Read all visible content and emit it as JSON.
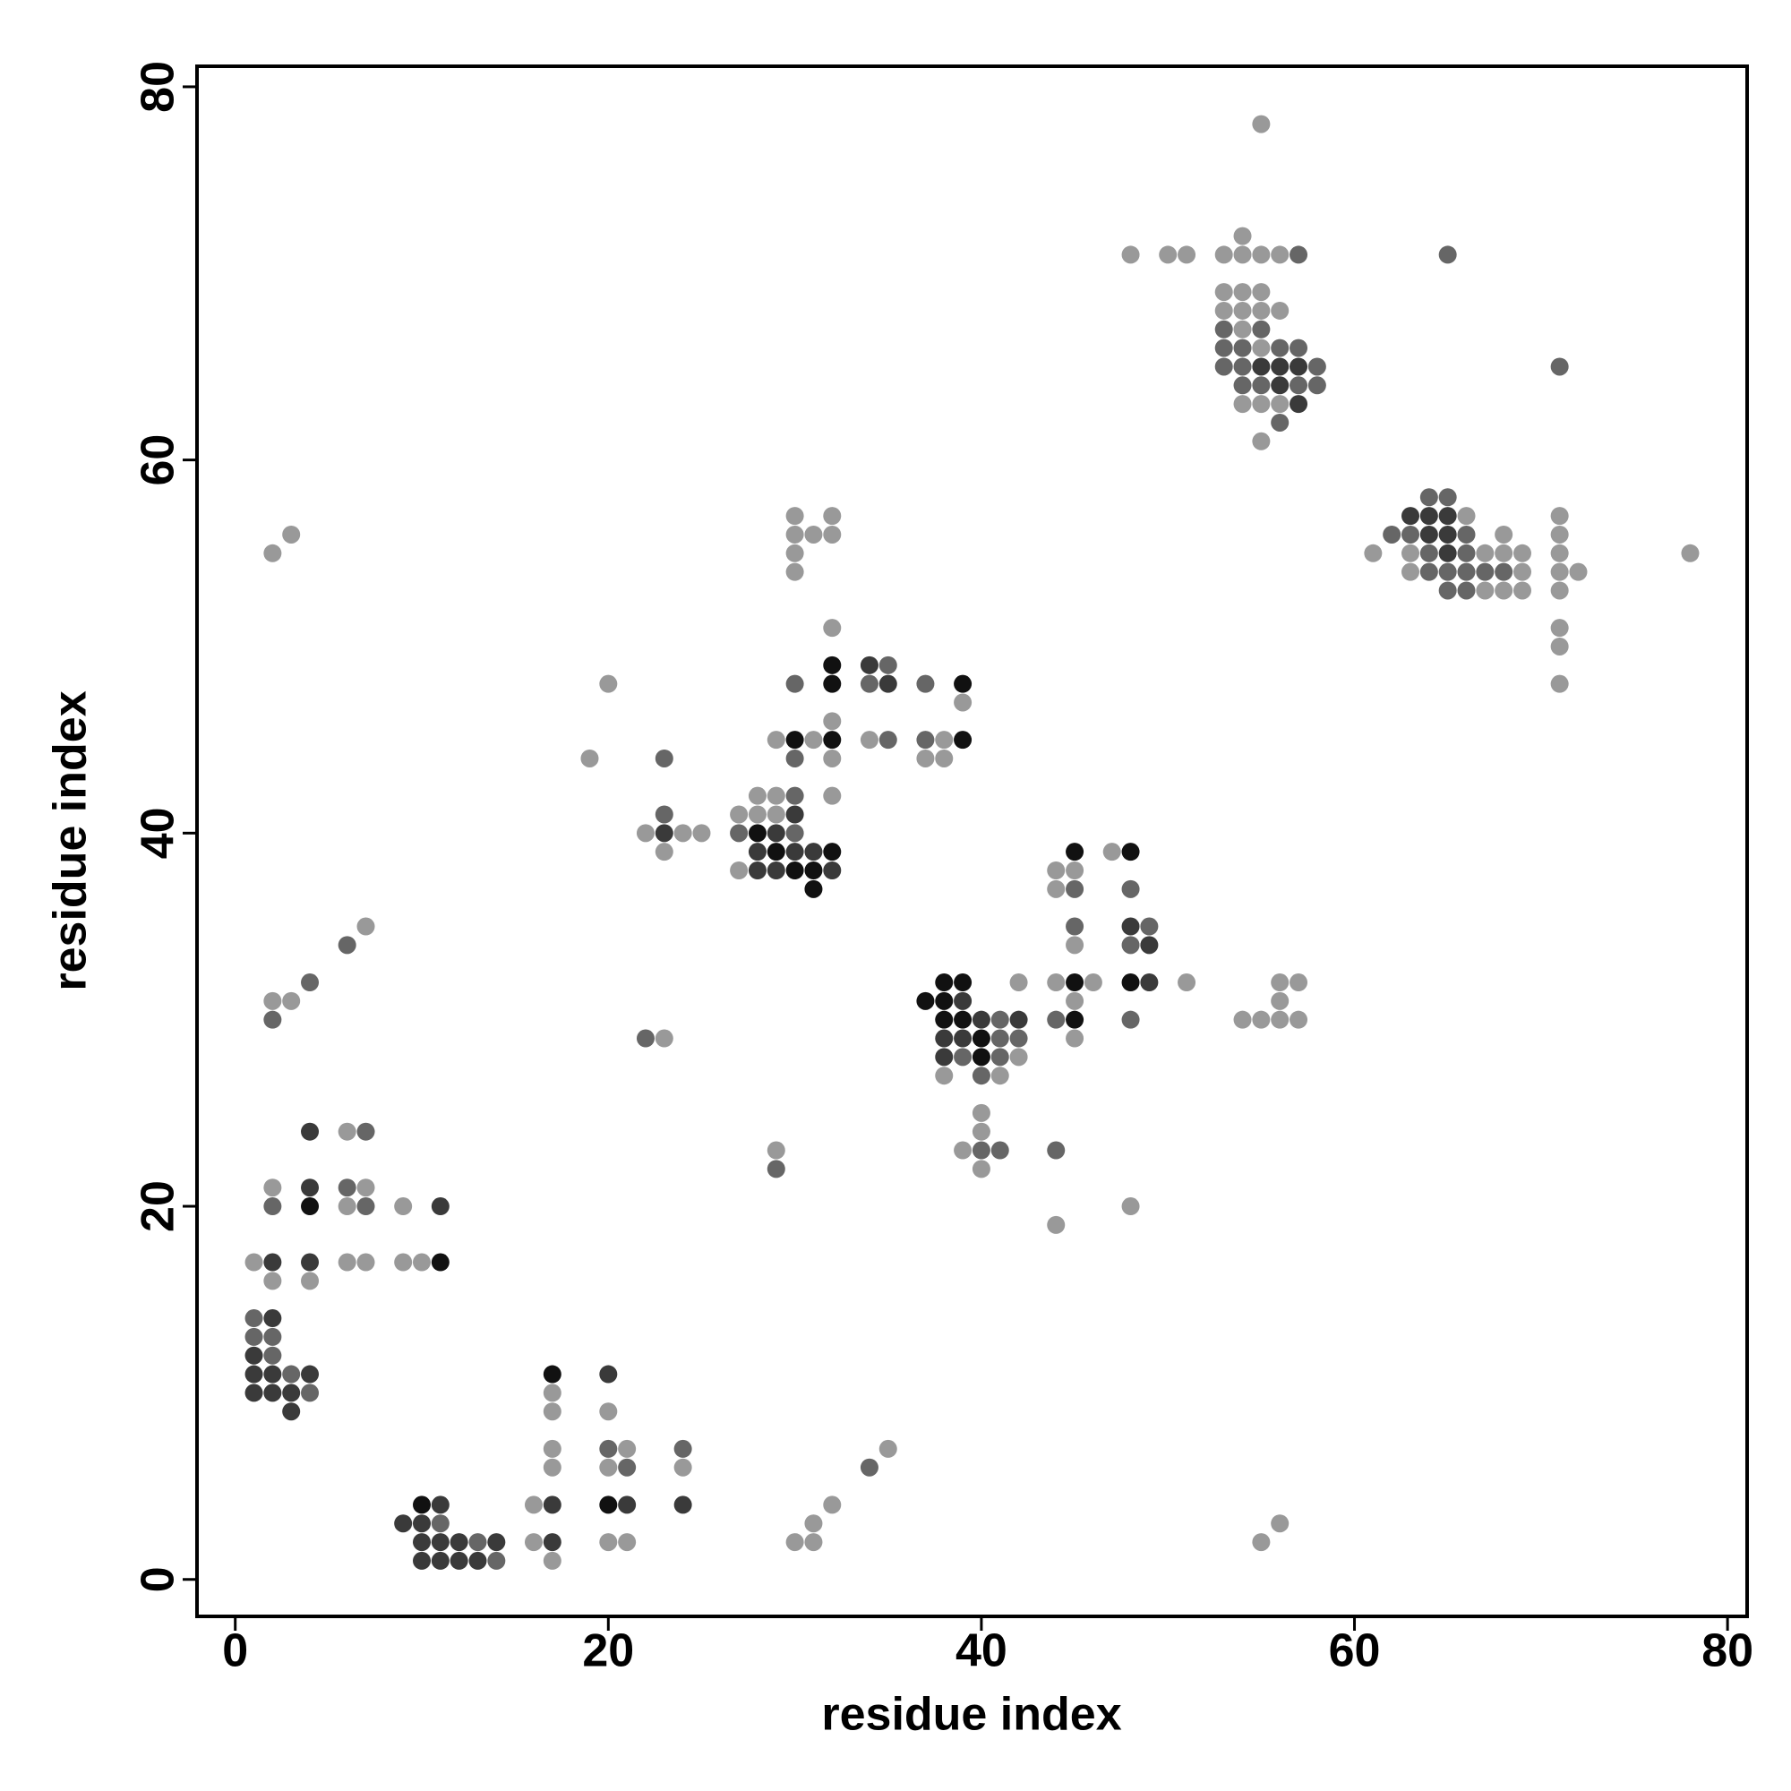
{
  "chart_data": {
    "type": "scatter",
    "xlabel": "residue index",
    "ylabel": "residue index",
    "xlim": [
      -2.05,
      81.05
    ],
    "ylim": [
      -1.98,
      81.1
    ],
    "xticks": [
      0,
      20,
      40,
      60,
      80
    ],
    "yticks": [
      0,
      20,
      40,
      60,
      80
    ],
    "series": [
      {
        "color": "#111111",
        "x": [
          10,
          17,
          20,
          4,
          11,
          28,
          29,
          30,
          30,
          31,
          31,
          32,
          32,
          32,
          32,
          39,
          39,
          37,
          38,
          38,
          38,
          39,
          39,
          40,
          40,
          45,
          45,
          45,
          48,
          48
        ],
        "y": [
          4,
          11,
          4,
          20,
          17,
          40,
          39,
          38,
          45,
          38,
          37,
          49,
          48,
          45,
          39,
          48,
          45,
          31,
          32,
          31,
          30,
          32,
          30,
          29,
          28,
          39,
          32,
          30,
          39,
          32
        ]
      },
      {
        "color": "#3a3a3a",
        "x": [
          9,
          10,
          10,
          10,
          11,
          11,
          11,
          12,
          12,
          13,
          14,
          17,
          17,
          20,
          21,
          24,
          1,
          1,
          1,
          2,
          2,
          2,
          3,
          3,
          4,
          2,
          4,
          4,
          4,
          11,
          23,
          28,
          28,
          29,
          29,
          30,
          30,
          31,
          32,
          34,
          35,
          38,
          38,
          39,
          39,
          40,
          42,
          48,
          49,
          49,
          55,
          56,
          56,
          57,
          57,
          63,
          64,
          64,
          65,
          65,
          65
        ],
        "y": [
          3,
          3,
          2,
          1,
          4,
          2,
          1,
          2,
          1,
          1,
          2,
          4,
          2,
          11,
          4,
          4,
          12,
          11,
          10,
          14,
          11,
          10,
          10,
          9,
          11,
          17,
          24,
          21,
          17,
          20,
          40,
          39,
          38,
          40,
          38,
          41,
          39,
          39,
          38,
          49,
          48,
          29,
          28,
          31,
          29,
          30,
          30,
          35,
          34,
          32,
          65,
          65,
          64,
          65,
          63,
          57,
          57,
          56,
          57,
          56,
          55
        ]
      },
      {
        "color": "#666666",
        "x": [
          11,
          13,
          14,
          20,
          21,
          24,
          34,
          1,
          1,
          2,
          2,
          3,
          4,
          2,
          6,
          7,
          7,
          2,
          4,
          6,
          22,
          23,
          23,
          27,
          29,
          30,
          30,
          30,
          30,
          34,
          35,
          35,
          37,
          37,
          39,
          40,
          40,
          41,
          41,
          41,
          41,
          42,
          44,
          44,
          45,
          45,
          48,
          48,
          48,
          49,
          57,
          53,
          53,
          53,
          54,
          54,
          54,
          55,
          55,
          56,
          56,
          57,
          57,
          58,
          58,
          65,
          71,
          62,
          63,
          64,
          64,
          64,
          65,
          65,
          65,
          66,
          66,
          66,
          66,
          67,
          68
        ],
        "y": [
          3,
          2,
          1,
          7,
          6,
          7,
          6,
          14,
          13,
          13,
          12,
          11,
          10,
          20,
          21,
          24,
          20,
          30,
          32,
          34,
          29,
          44,
          41,
          40,
          22,
          42,
          40,
          44,
          48,
          48,
          49,
          45,
          48,
          45,
          28,
          27,
          23,
          30,
          29,
          28,
          23,
          29,
          30,
          23,
          37,
          35,
          37,
          34,
          30,
          35,
          71,
          67,
          66,
          65,
          66,
          65,
          64,
          67,
          64,
          66,
          62,
          66,
          64,
          65,
          64,
          71,
          65,
          56,
          56,
          58,
          55,
          54,
          58,
          54,
          53,
          56,
          55,
          54,
          53,
          54,
          54
        ]
      },
      {
        "color": "#999999",
        "x": [
          16,
          16,
          17,
          17,
          17,
          17,
          17,
          20,
          20,
          20,
          21,
          21,
          24,
          30,
          31,
          31,
          32,
          35,
          55,
          56,
          1,
          2,
          2,
          4,
          6,
          6,
          6,
          7,
          7,
          9,
          9,
          10,
          2,
          3,
          7,
          2,
          3,
          19,
          20,
          22,
          23,
          23,
          24,
          25,
          27,
          27,
          28,
          28,
          29,
          29,
          29,
          29,
          30,
          30,
          30,
          30,
          31,
          31,
          32,
          32,
          32,
          32,
          32,
          32,
          34,
          37,
          38,
          38,
          39,
          38,
          40,
          40,
          40,
          39,
          41,
          42,
          42,
          44,
          44,
          44,
          44,
          45,
          45,
          45,
          45,
          46,
          47,
          48,
          51,
          54,
          55,
          56,
          56,
          56,
          57,
          57,
          48,
          50,
          51,
          53,
          54,
          54,
          55,
          55,
          56,
          53,
          53,
          54,
          54,
          54,
          54,
          55,
          55,
          55,
          55,
          55,
          56,
          56,
          61,
          63,
          63,
          66,
          67,
          67,
          68,
          68,
          68,
          69,
          69,
          69,
          71,
          71,
          71,
          71,
          71,
          71,
          71,
          71,
          72,
          78
        ],
        "y": [
          4,
          2,
          10,
          9,
          7,
          6,
          1,
          9,
          6,
          2,
          7,
          2,
          6,
          2,
          3,
          2,
          4,
          7,
          2,
          3,
          17,
          16,
          21,
          16,
          24,
          20,
          17,
          21,
          17,
          20,
          17,
          17,
          31,
          31,
          35,
          55,
          56,
          44,
          48,
          40,
          39,
          29,
          40,
          40,
          41,
          38,
          42,
          41,
          42,
          41,
          45,
          23,
          57,
          56,
          55,
          54,
          56,
          45,
          57,
          56,
          51,
          46,
          44,
          42,
          45,
          44,
          45,
          44,
          47,
          27,
          25,
          24,
          22,
          23,
          27,
          32,
          28,
          38,
          37,
          32,
          19,
          38,
          34,
          31,
          29,
          32,
          39,
          20,
          32,
          30,
          30,
          32,
          31,
          30,
          32,
          30,
          71,
          71,
          71,
          71,
          72,
          71,
          78,
          71,
          71,
          69,
          68,
          69,
          68,
          67,
          63,
          69,
          68,
          66,
          63,
          61,
          68,
          63,
          55,
          55,
          54,
          57,
          55,
          53,
          56,
          55,
          53,
          55,
          54,
          53,
          57,
          56,
          55,
          54,
          53,
          51,
          50,
          48,
          54,
          55
        ]
      }
    ]
  }
}
